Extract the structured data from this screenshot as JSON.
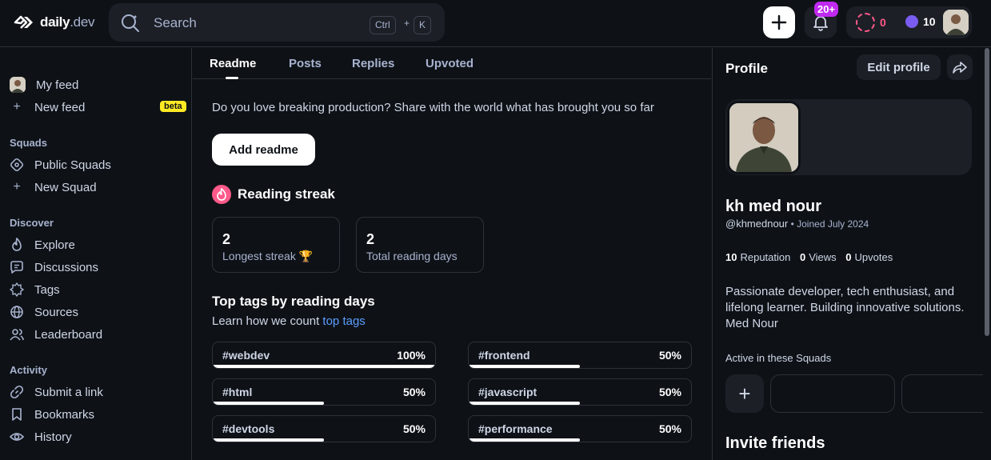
{
  "header": {
    "logo_text": "daily",
    "logo_suffix": ".dev",
    "search_placeholder": "Search",
    "shortcut_ctrl": "Ctrl",
    "shortcut_plus": "+",
    "shortcut_key": "K",
    "notifications_badge": "20+",
    "reputation_value": "0",
    "cores_value": "10"
  },
  "sidebar": {
    "my_feed": "My feed",
    "new_feed": "New feed",
    "beta_badge": "beta",
    "squads_title": "Squads",
    "public_squads": "Public Squads",
    "new_squad": "New Squad",
    "discover_title": "Discover",
    "explore": "Explore",
    "discussions": "Discussions",
    "tags": "Tags",
    "sources": "Sources",
    "leaderboard": "Leaderboard",
    "activity_title": "Activity",
    "submit_link": "Submit a link",
    "bookmarks": "Bookmarks",
    "history": "History"
  },
  "tabs": [
    "Readme",
    "Posts",
    "Replies",
    "Upvoted"
  ],
  "readme": {
    "prompt": "Do you love breaking production? Share with the world what has brought you so far",
    "button": "Add readme"
  },
  "streak": {
    "title": "Reading streak",
    "longest_value": "2",
    "longest_label": "Longest streak 🏆",
    "total_value": "2",
    "total_label": "Total reading days"
  },
  "top_tags": {
    "title": "Top tags by reading days",
    "subtitle_prefix": "Learn how we count ",
    "subtitle_link": "top tags",
    "items": [
      {
        "name": "#webdev",
        "pct_label": "100%",
        "pct": 100
      },
      {
        "name": "#frontend",
        "pct_label": "50%",
        "pct": 50
      },
      {
        "name": "#html",
        "pct_label": "50%",
        "pct": 50
      },
      {
        "name": "#javascript",
        "pct_label": "50%",
        "pct": 50
      },
      {
        "name": "#devtools",
        "pct_label": "50%",
        "pct": 50
      },
      {
        "name": "#performance",
        "pct_label": "50%",
        "pct": 50
      }
    ]
  },
  "profile": {
    "title": "Profile",
    "edit_button": "Edit profile",
    "name": "kh med nour",
    "handle": "@khmednour",
    "joined": "Joined July 2024",
    "reputation_value": "10",
    "reputation_label": "Reputation",
    "views_value": "0",
    "views_label": "Views",
    "upvotes_value": "0",
    "upvotes_label": "Upvotes",
    "bio": "Passionate developer, tech enthusiast, and lifelong learner. Building innovative solutions. Med Nour",
    "squads_label": "Active in these Squads",
    "invite_title": "Invite friends"
  },
  "colors": {
    "background": "#0e1217",
    "accent_pink": "#ff5a8a",
    "accent_purple": "#c029f0",
    "link_blue": "#5c9dff",
    "beta_yellow": "#ffe923"
  }
}
